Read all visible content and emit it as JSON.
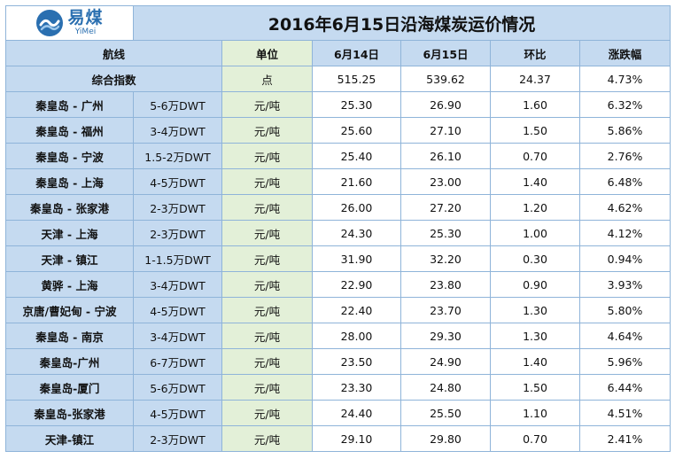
{
  "logo": {
    "main": "易煤",
    "sub": "YiMei"
  },
  "title": "2016年6月15日沿海煤炭运价情况",
  "headers": {
    "route": "航线",
    "unit": "单位",
    "d1": "6月14日",
    "d2": "6月15日",
    "change": "环比",
    "pct": "涨跌幅"
  },
  "index_row": {
    "label": "综合指数",
    "unit": "点",
    "d1": "515.25",
    "d2": "539.62",
    "change": "24.37",
    "pct": "4.73%"
  },
  "rows": [
    {
      "route": "秦皇岛 - 广州",
      "size": "5-6万DWT",
      "unit": "元/吨",
      "d1": "25.30",
      "d2": "26.90",
      "change": "1.60",
      "pct": "6.32%"
    },
    {
      "route": "秦皇岛 - 福州",
      "size": "3-4万DWT",
      "unit": "元/吨",
      "d1": "25.60",
      "d2": "27.10",
      "change": "1.50",
      "pct": "5.86%"
    },
    {
      "route": "秦皇岛 - 宁波",
      "size": "1.5-2万DWT",
      "unit": "元/吨",
      "d1": "25.40",
      "d2": "26.10",
      "change": "0.70",
      "pct": "2.76%"
    },
    {
      "route": "秦皇岛 - 上海",
      "size": "4-5万DWT",
      "unit": "元/吨",
      "d1": "21.60",
      "d2": "23.00",
      "change": "1.40",
      "pct": "6.48%"
    },
    {
      "route": "秦皇岛 - 张家港",
      "size": "2-3万DWT",
      "unit": "元/吨",
      "d1": "26.00",
      "d2": "27.20",
      "change": "1.20",
      "pct": "4.62%"
    },
    {
      "route": "天津 - 上海",
      "size": "2-3万DWT",
      "unit": "元/吨",
      "d1": "24.30",
      "d2": "25.30",
      "change": "1.00",
      "pct": "4.12%"
    },
    {
      "route": "天津 - 镇江",
      "size": "1-1.5万DWT",
      "unit": "元/吨",
      "d1": "31.90",
      "d2": "32.20",
      "change": "0.30",
      "pct": "0.94%"
    },
    {
      "route": "黄骅 - 上海",
      "size": "3-4万DWT",
      "unit": "元/吨",
      "d1": "22.90",
      "d2": "23.80",
      "change": "0.90",
      "pct": "3.93%"
    },
    {
      "route": "京唐/曹妃甸 - 宁波",
      "size": "4-5万DWT",
      "unit": "元/吨",
      "d1": "22.40",
      "d2": "23.70",
      "change": "1.30",
      "pct": "5.80%"
    },
    {
      "route": "秦皇岛 - 南京",
      "size": "3-4万DWT",
      "unit": "元/吨",
      "d1": "28.00",
      "d2": "29.30",
      "change": "1.30",
      "pct": "4.64%"
    },
    {
      "route": "秦皇岛-广州",
      "size": "6-7万DWT",
      "unit": "元/吨",
      "d1": "23.50",
      "d2": "24.90",
      "change": "1.40",
      "pct": "5.96%"
    },
    {
      "route": "秦皇岛-厦门",
      "size": "5-6万DWT",
      "unit": "元/吨",
      "d1": "23.30",
      "d2": "24.80",
      "change": "1.50",
      "pct": "6.44%"
    },
    {
      "route": "秦皇岛-张家港",
      "size": "4-5万DWT",
      "unit": "元/吨",
      "d1": "24.40",
      "d2": "25.50",
      "change": "1.10",
      "pct": "4.51%"
    },
    {
      "route": "天津-镇江",
      "size": "2-3万DWT",
      "unit": "元/吨",
      "d1": "29.10",
      "d2": "29.80",
      "change": "0.70",
      "pct": "2.41%"
    }
  ],
  "colors": {
    "header_blue": "#c5daf0",
    "unit_green": "#e3f0d8",
    "border": "#8fb4d9",
    "logo_blue": "#2a6fb0"
  }
}
